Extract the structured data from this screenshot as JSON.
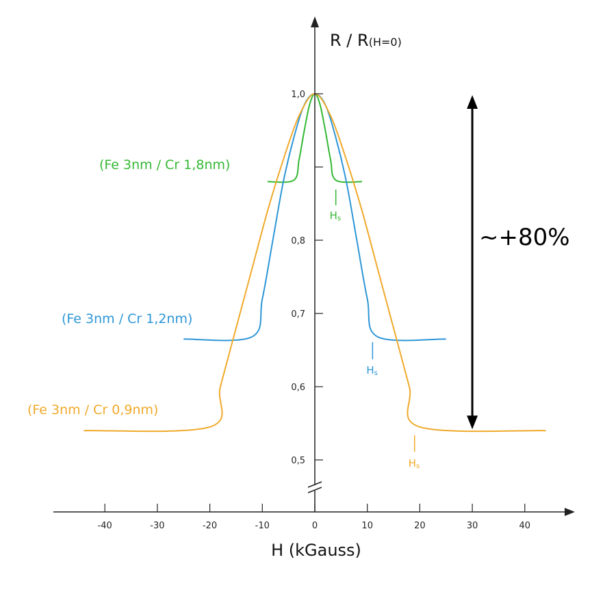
{
  "chart_data": {
    "type": "line",
    "title": "",
    "xlabel": "H (kGauss)",
    "ylabel_main": "R / R",
    "ylabel_sub": "(H=0)",
    "xlim": [
      -50,
      50
    ],
    "ylim": [
      0.5,
      1.0
    ],
    "x_ticks": [
      -40,
      -30,
      -20,
      -10,
      0,
      10,
      20,
      30,
      40
    ],
    "x_tick_labels": [
      "-40",
      "-30",
      "-20",
      "-10",
      "0",
      "10",
      "20",
      "30",
      "40"
    ],
    "y_ticks": [
      0.5,
      0.6,
      0.7,
      0.8,
      0.9,
      1.0
    ],
    "y_tick_labels": [
      "0,5",
      "0,6",
      "0,7",
      "0,8",
      "",
      "1,0"
    ],
    "axis_break": "y-axis below 0,5",
    "grid": false,
    "series": [
      {
        "name": "(Fe 3nm / Cr 1,8nm)",
        "color": "#33b833",
        "saturation_value": 0.88,
        "x_range": [
          -9,
          9
        ],
        "saturation_field": 4,
        "points": [
          [
            -9,
            0.88
          ],
          [
            -4,
            0.882
          ],
          [
            -3,
            0.91
          ],
          [
            -2,
            0.95
          ],
          [
            -1,
            0.985
          ],
          [
            0,
            1.0
          ],
          [
            1,
            0.985
          ],
          [
            2,
            0.95
          ],
          [
            3,
            0.91
          ],
          [
            4,
            0.882
          ],
          [
            9,
            0.88
          ]
        ],
        "hs_label": "H",
        "hs_sub": "s"
      },
      {
        "name": "(Fe 3nm / Cr 1,2nm)",
        "color": "#2c96d6",
        "saturation_value": 0.665,
        "x_range": [
          -25,
          25
        ],
        "saturation_field": 11,
        "points": [
          [
            -25,
            0.665
          ],
          [
            -12,
            0.668
          ],
          [
            -10,
            0.72
          ],
          [
            -8,
            0.8
          ],
          [
            -6,
            0.88
          ],
          [
            -4,
            0.94
          ],
          [
            -2,
            0.985
          ],
          [
            0,
            1.0
          ],
          [
            2,
            0.985
          ],
          [
            4,
            0.94
          ],
          [
            6,
            0.88
          ],
          [
            8,
            0.8
          ],
          [
            10,
            0.72
          ],
          [
            12,
            0.668
          ],
          [
            25,
            0.665
          ]
        ],
        "hs_label": "H",
        "hs_sub": "s"
      },
      {
        "name": "(Fe 3nm / Cr 0,9nm)",
        "color": "#f0a92a",
        "saturation_value": 0.54,
        "x_range": [
          -44,
          44
        ],
        "saturation_field": 19,
        "points": [
          [
            -44,
            0.54
          ],
          [
            -20,
            0.545
          ],
          [
            -18,
            0.6
          ],
          [
            -15,
            0.68
          ],
          [
            -12,
            0.76
          ],
          [
            -9,
            0.84
          ],
          [
            -6,
            0.91
          ],
          [
            -3,
            0.97
          ],
          [
            0,
            1.0
          ],
          [
            3,
            0.97
          ],
          [
            6,
            0.91
          ],
          [
            9,
            0.84
          ],
          [
            12,
            0.76
          ],
          [
            15,
            0.68
          ],
          [
            18,
            0.6
          ],
          [
            20,
            0.545
          ],
          [
            44,
            0.54
          ]
        ],
        "hs_label": "H",
        "hs_sub": "s"
      }
    ],
    "annotation": {
      "text": "~+80%",
      "x": 30,
      "y_from": 0.54,
      "y_to": 1.0,
      "color": "#000000"
    }
  }
}
